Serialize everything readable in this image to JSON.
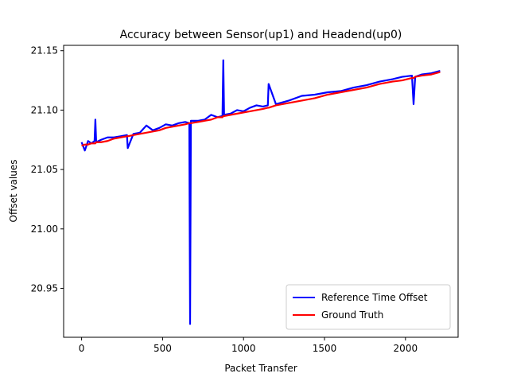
{
  "chart_data": {
    "type": "line",
    "title": "Accuracy between Sensor(up1) and Headend(up0)",
    "x_label": "Packet Transfer",
    "y_label": "Offset values",
    "x": [
      0,
      20,
      40,
      60,
      80,
      85,
      90,
      120,
      160,
      200,
      240,
      280,
      285,
      320,
      360,
      400,
      440,
      480,
      520,
      560,
      600,
      640,
      665,
      670,
      675,
      720,
      760,
      800,
      840,
      870,
      875,
      880,
      920,
      960,
      1000,
      1040,
      1080,
      1120,
      1150,
      1155,
      1200,
      1280,
      1360,
      1440,
      1520,
      1600,
      1680,
      1760,
      1840,
      1920,
      1980,
      2040,
      2050,
      2060,
      2100,
      2160,
      2214
    ],
    "series": [
      {
        "name": "Reference Time Offset",
        "color": "#0000ff",
        "values": [
          21.073,
          21.066,
          21.074,
          21.072,
          21.074,
          21.092,
          21.073,
          21.075,
          21.077,
          21.077,
          21.078,
          21.079,
          21.068,
          21.08,
          21.081,
          21.087,
          21.083,
          21.085,
          21.088,
          21.087,
          21.089,
          21.09,
          21.089,
          20.92,
          21.091,
          21.091,
          21.092,
          21.096,
          21.094,
          21.095,
          21.142,
          21.096,
          21.097,
          21.1,
          21.099,
          21.102,
          21.104,
          21.103,
          21.104,
          21.122,
          21.105,
          21.108,
          21.112,
          21.113,
          21.115,
          21.116,
          21.119,
          21.121,
          21.124,
          21.126,
          21.128,
          21.129,
          21.105,
          21.128,
          21.13,
          21.131,
          21.133
        ]
      },
      {
        "name": "Ground Truth",
        "color": "#ff0000",
        "values": [
          21.07,
          21.071,
          21.071,
          21.072,
          21.072,
          21.072,
          21.073,
          21.073,
          21.074,
          21.076,
          21.077,
          21.078,
          21.078,
          21.079,
          21.08,
          21.081,
          21.082,
          21.083,
          21.085,
          21.086,
          21.087,
          21.088,
          21.089,
          21.089,
          21.089,
          21.09,
          21.091,
          21.092,
          21.094,
          21.094,
          21.095,
          21.095,
          21.096,
          21.097,
          21.098,
          21.099,
          21.1,
          21.101,
          21.102,
          21.102,
          21.104,
          21.106,
          21.108,
          21.11,
          21.113,
          21.115,
          21.117,
          21.119,
          21.122,
          21.124,
          21.125,
          21.127,
          21.127,
          21.128,
          21.129,
          21.13,
          21.132
        ]
      }
    ],
    "xlim": [
      -111,
      2325
    ],
    "ylim": [
      20.9088,
      21.1545
    ],
    "xticks": [
      0,
      500,
      1000,
      1500,
      2000
    ],
    "yticks": [
      20.95,
      {
        "value": 21,
        "label": "21.00"
      },
      21.05,
      {
        "value": 21.1,
        "label": "21.10"
      },
      {
        "value": 21.15,
        "label": "21.15"
      }
    ],
    "legend": "lower right"
  }
}
